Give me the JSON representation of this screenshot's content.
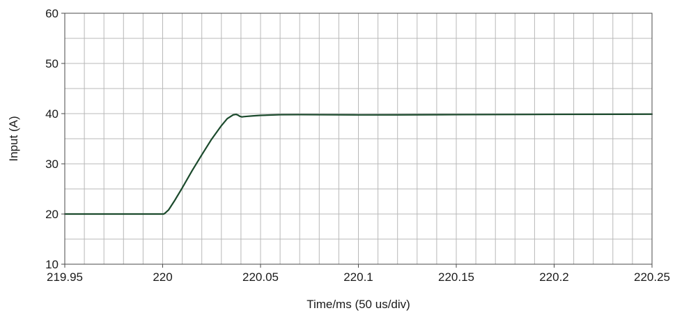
{
  "chart_data": {
    "type": "line",
    "xlabel": "Time/ms (50 us/div)",
    "ylabel": "Input (A)",
    "xlim": [
      219.95,
      220.25
    ],
    "ylim": [
      10,
      60
    ],
    "x_ticks": [
      219.95,
      220,
      220.05,
      220.1,
      220.15,
      220.2,
      220.25
    ],
    "x_tick_labels": [
      "219.95",
      "220",
      "220.05",
      "220.1",
      "220.15",
      "220.2",
      "220.25"
    ],
    "y_ticks": [
      10,
      20,
      30,
      40,
      50,
      60
    ],
    "y_tick_labels": [
      "10",
      "20",
      "30",
      "40",
      "50",
      "60"
    ],
    "minor_x_per_major": 5,
    "minor_y_per_major": 2,
    "grid": true,
    "series": [
      {
        "color": "#1b4a2c",
        "x": [
          219.95,
          220.0,
          220.0005,
          220.001,
          220.003,
          220.006,
          220.01,
          220.015,
          220.02,
          220.025,
          220.03,
          220.033,
          220.036,
          220.0375,
          220.0385,
          220.0395,
          220.0405,
          220.0415,
          220.043,
          220.046,
          220.05,
          220.055,
          220.06,
          220.07,
          220.08,
          220.1,
          220.12,
          220.15,
          220.2,
          220.25
        ],
        "y": [
          20,
          20,
          20,
          20.1,
          20.8,
          22.6,
          25.2,
          28.6,
          31.8,
          34.9,
          37.6,
          39.0,
          39.75,
          39.85,
          39.7,
          39.45,
          39.35,
          39.4,
          39.45,
          39.55,
          39.65,
          39.72,
          39.78,
          39.8,
          39.78,
          39.75,
          39.76,
          39.8,
          39.85,
          39.9
        ]
      }
    ]
  }
}
